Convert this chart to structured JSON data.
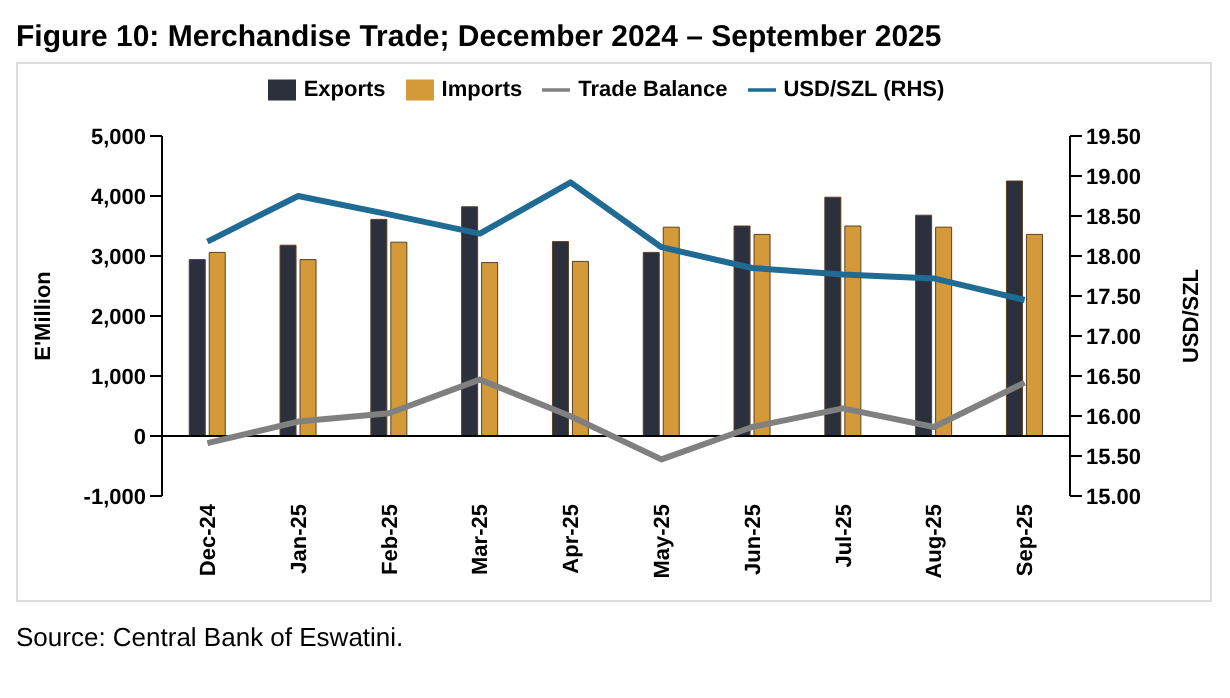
{
  "chart_data": {
    "type": "bar",
    "title": "Figure 10: Merchandise Trade; December 2024 – September 2025",
    "ylabel": "E'Million",
    "y2label": "USD/SZL",
    "annotations": [
      "Source: Central Bank of Eswatini."
    ],
    "categories": [
      "Dec-24",
      "Jan-25",
      "Feb-25",
      "Mar-25",
      "Apr-25",
      "May-25",
      "Jun-25",
      "Jul-25",
      "Aug-25",
      "Sep-25"
    ],
    "series": [
      {
        "name": "Exports",
        "color": "#2b303c",
        "values": [
          2940,
          3180,
          3610,
          3820,
          3240,
          3060,
          3500,
          3980,
          3680,
          4250
        ]
      },
      {
        "name": "Imports",
        "color": "#d49a3a",
        "values": [
          3060,
          2940,
          3230,
          2890,
          2910,
          3480,
          3360,
          3500,
          3480,
          3360
        ]
      },
      {
        "name": "Trade Balance",
        "type": "line",
        "color": "#808080",
        "values": [
          -120,
          240,
          380,
          940,
          330,
          -390,
          150,
          460,
          150,
          890
        ]
      },
      {
        "name": "USD/SZL (RHS)",
        "type": "line",
        "axis": "y2",
        "color": "#1f6b94",
        "values": [
          18.18,
          18.75,
          18.52,
          18.28,
          18.92,
          18.11,
          17.85,
          17.77,
          17.72,
          17.45
        ]
      }
    ],
    "ylim": [
      -1000,
      5000
    ],
    "yticks": [
      {
        "value": -1000,
        "label": "-1,000"
      },
      0,
      {
        "value": 1000,
        "label": "1,000"
      },
      {
        "value": 2000,
        "label": "2,000"
      },
      {
        "value": 3000,
        "label": "3,000"
      },
      {
        "value": 4000,
        "label": "4,000"
      },
      {
        "value": 5000,
        "label": "5,000"
      }
    ],
    "y2lim": [
      15,
      19.5
    ],
    "y2ticks": [
      {
        "value": 15,
        "label": "15.00"
      },
      {
        "value": 15.5,
        "label": "15.50"
      },
      {
        "value": 16,
        "label": "16.00"
      },
      {
        "value": 16.5,
        "label": "16.50"
      },
      {
        "value": 17,
        "label": "17.00"
      },
      {
        "value": 17.5,
        "label": "17.50"
      },
      {
        "value": 18,
        "label": "18.00"
      },
      {
        "value": 18.5,
        "label": "18.50"
      },
      {
        "value": 19,
        "label": "19.00"
      },
      {
        "value": 19.5,
        "label": "19.50"
      }
    ],
    "legend": "top",
    "marker": "none"
  }
}
